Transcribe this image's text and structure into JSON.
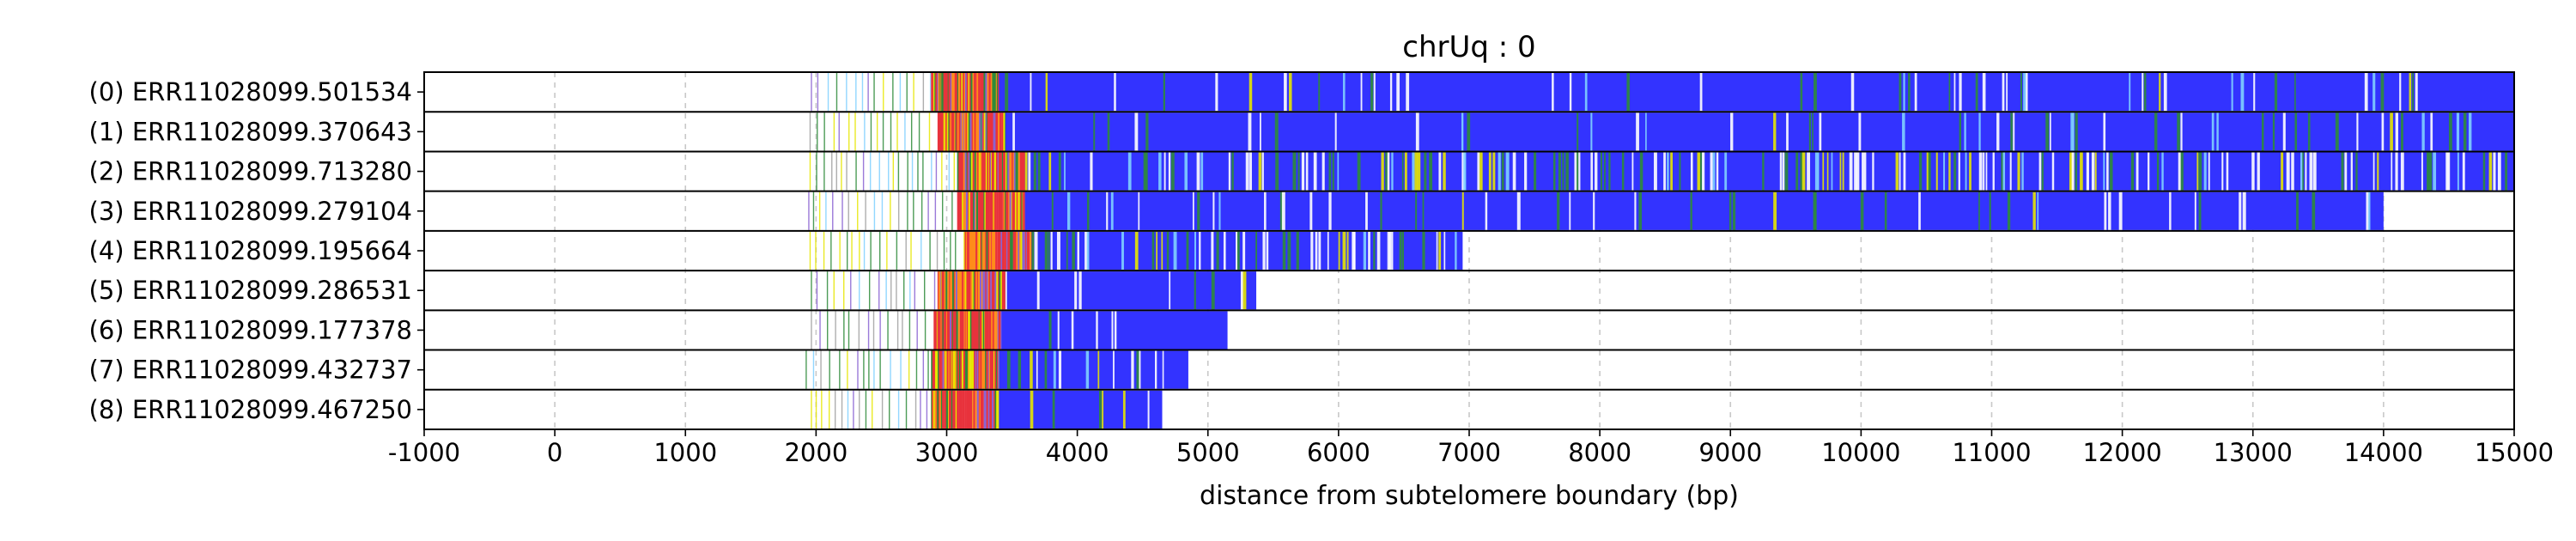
{
  "chart_data": {
    "type": "heatmap",
    "title": "chrUq : 0",
    "xlabel": "distance from subtelomere boundary (bp)",
    "ylabel": "",
    "xlim": [
      -1000,
      15000
    ],
    "x_ticks": [
      -1000,
      0,
      1000,
      2000,
      3000,
      4000,
      5000,
      6000,
      7000,
      8000,
      9000,
      10000,
      11000,
      12000,
      13000,
      14000,
      15000
    ],
    "x_tick_labels": [
      "-1000",
      "0",
      "1000",
      "2000",
      "3000",
      "4000",
      "5000",
      "6000",
      "7000",
      "8000",
      "9000",
      "10000",
      "11000",
      "12000",
      "13000",
      "14000",
      "15000"
    ],
    "grid": "vertical dashed",
    "rows": [
      {
        "label": "(0) ERR11028099.501534",
        "start": 1960,
        "end": 15000,
        "transition": 3400
      },
      {
        "label": "(1) ERR11028099.370643",
        "start": 1950,
        "end": 15000,
        "transition": 3450
      },
      {
        "label": "(2) ERR11028099.713280",
        "start": 1950,
        "end": 15000,
        "transition": 3600
      },
      {
        "label": "(3) ERR11028099.279104",
        "start": 1940,
        "end": 14000,
        "transition": 3600
      },
      {
        "label": "(4) ERR11028099.195664",
        "start": 1950,
        "end": 6950,
        "transition": 3650
      },
      {
        "label": "(5) ERR11028099.286531",
        "start": 1960,
        "end": 5370,
        "transition": 3450
      },
      {
        "label": "(6) ERR11028099.177378",
        "start": 1960,
        "end": 5150,
        "transition": 3420
      },
      {
        "label": "(7) ERR11028099.432737",
        "start": 1920,
        "end": 4850,
        "transition": 3400
      },
      {
        "label": "(8) ERR11028099.467250",
        "start": 1960,
        "end": 4650,
        "transition": 3400
      }
    ],
    "colors": {
      "telomere": "#3333ff",
      "variant_green": "#2e8b3a",
      "variant_red": "#e8323c",
      "variant_orange": "#ff8c1a",
      "variant_yellow": "#e6e600",
      "variant_cyan": "#7fd0ff",
      "variant_purple": "#8a63d2",
      "variant_gray": "#a0a0a0"
    }
  }
}
